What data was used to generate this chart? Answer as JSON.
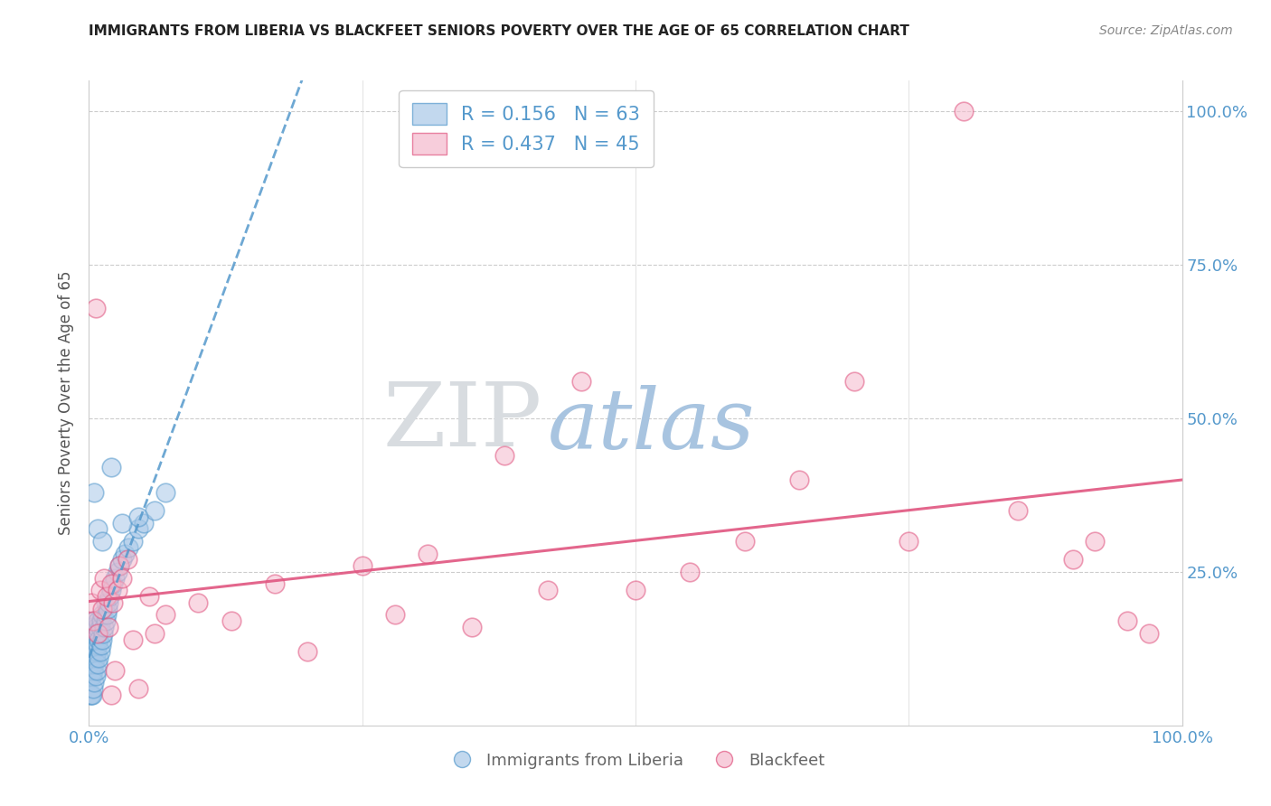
{
  "title": "IMMIGRANTS FROM LIBERIA VS BLACKFEET SENIORS POVERTY OVER THE AGE OF 65 CORRELATION CHART",
  "source": "Source: ZipAtlas.com",
  "ylabel": "Seniors Poverty Over the Age of 65",
  "legend_label_1": "Immigrants from Liberia",
  "legend_label_2": "Blackfeet",
  "r1": "0.156",
  "n1": "63",
  "r2": "0.437",
  "n2": "45",
  "color_blue": "#a8c8e8",
  "color_pink": "#f5b8cc",
  "line_blue": "#5599cc",
  "line_pink": "#e05580",
  "axis_label_color": "#5599cc",
  "watermark_zip_color": "#d8dce0",
  "watermark_atlas_color": "#a8c4e0",
  "blue_x": [
    0.001,
    0.001,
    0.002,
    0.002,
    0.002,
    0.002,
    0.003,
    0.003,
    0.003,
    0.003,
    0.003,
    0.004,
    0.004,
    0.004,
    0.004,
    0.005,
    0.005,
    0.005,
    0.005,
    0.006,
    0.006,
    0.006,
    0.007,
    0.007,
    0.007,
    0.008,
    0.008,
    0.008,
    0.009,
    0.009,
    0.01,
    0.01,
    0.011,
    0.011,
    0.012,
    0.012,
    0.013,
    0.014,
    0.015,
    0.015,
    0.016,
    0.017,
    0.018,
    0.019,
    0.02,
    0.022,
    0.024,
    0.026,
    0.028,
    0.03,
    0.033,
    0.036,
    0.04,
    0.045,
    0.05,
    0.06,
    0.07,
    0.005,
    0.008,
    0.012,
    0.02,
    0.03,
    0.045
  ],
  "blue_y": [
    0.05,
    0.1,
    0.05,
    0.08,
    0.12,
    0.15,
    0.05,
    0.08,
    0.1,
    0.13,
    0.16,
    0.06,
    0.09,
    0.12,
    0.15,
    0.07,
    0.1,
    0.14,
    0.17,
    0.08,
    0.11,
    0.15,
    0.09,
    0.12,
    0.16,
    0.1,
    0.13,
    0.17,
    0.11,
    0.14,
    0.12,
    0.16,
    0.13,
    0.17,
    0.14,
    0.18,
    0.15,
    0.16,
    0.17,
    0.2,
    0.18,
    0.19,
    0.2,
    0.21,
    0.22,
    0.23,
    0.24,
    0.25,
    0.26,
    0.27,
    0.28,
    0.29,
    0.3,
    0.32,
    0.33,
    0.35,
    0.38,
    0.38,
    0.32,
    0.3,
    0.42,
    0.33,
    0.34
  ],
  "pink_x": [
    0.002,
    0.004,
    0.006,
    0.008,
    0.01,
    0.012,
    0.014,
    0.016,
    0.018,
    0.02,
    0.022,
    0.024,
    0.026,
    0.028,
    0.03,
    0.035,
    0.04,
    0.055,
    0.07,
    0.1,
    0.13,
    0.17,
    0.2,
    0.25,
    0.28,
    0.31,
    0.35,
    0.38,
    0.42,
    0.45,
    0.5,
    0.55,
    0.6,
    0.65,
    0.7,
    0.75,
    0.8,
    0.85,
    0.9,
    0.92,
    0.95,
    0.97,
    0.02,
    0.045,
    0.06
  ],
  "pink_y": [
    0.2,
    0.17,
    0.68,
    0.15,
    0.22,
    0.19,
    0.24,
    0.21,
    0.16,
    0.23,
    0.2,
    0.09,
    0.22,
    0.26,
    0.24,
    0.27,
    0.14,
    0.21,
    0.18,
    0.2,
    0.17,
    0.23,
    0.12,
    0.26,
    0.18,
    0.28,
    0.16,
    0.44,
    0.22,
    0.56,
    0.22,
    0.25,
    0.3,
    0.4,
    0.56,
    0.3,
    1.0,
    0.35,
    0.27,
    0.3,
    0.17,
    0.15,
    0.05,
    0.06,
    0.15
  ],
  "xlim": [
    0.0,
    1.0
  ],
  "ylim": [
    0.0,
    1.05
  ]
}
